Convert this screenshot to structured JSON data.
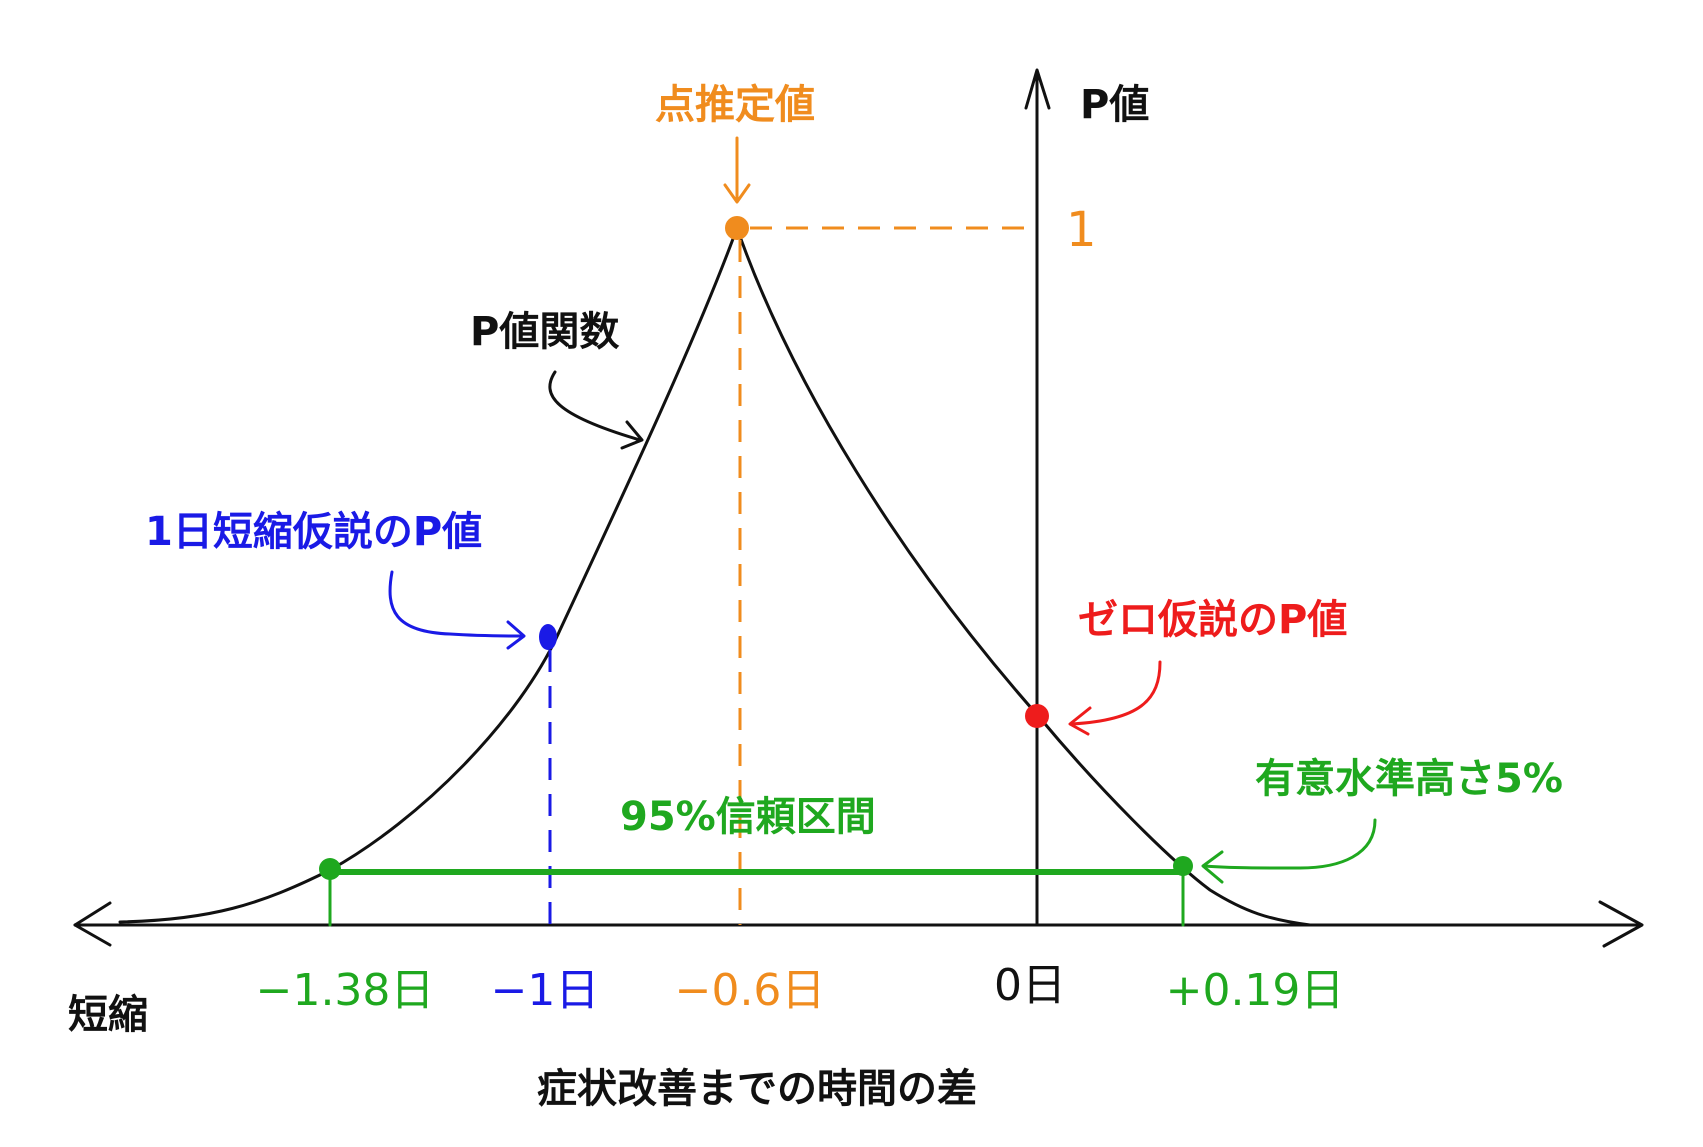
{
  "colors": {
    "black": "#111111",
    "orange": "#f08c1e",
    "blue": "#1a1ae6",
    "red": "#ee1c1c",
    "green": "#1fa81f"
  },
  "labels": {
    "y_axis": "P値",
    "point_estimate": "点推定値",
    "p_value_function": "P値関数",
    "one_day_hypothesis": "1日短縮仮説のP値",
    "null_hypothesis": "ゼロ仮説のP値",
    "significance_level": "有意水準高さ5%",
    "confidence_interval": "95%信頼区間",
    "shortening": "短縮",
    "x_axis": "症状改善までの時間の差"
  },
  "ticks": {
    "y_one": "1",
    "ci_lower": "−1.38日",
    "one_day": "−1日",
    "estimate": "−0.6日",
    "zero": "0日",
    "ci_upper": "+0.19日"
  },
  "icons": {
    "axis_arrows": "arrow-icon",
    "callouts": "curved-arrow-icon"
  }
}
